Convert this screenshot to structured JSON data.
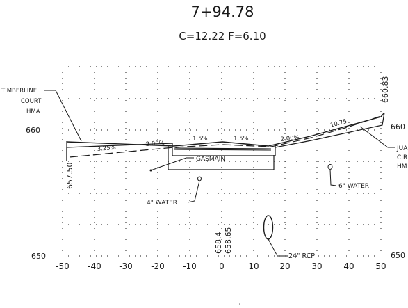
{
  "header": {
    "station": "7+94.78",
    "cut_fill": "C=12.22   F=6.10"
  },
  "axes": {
    "x_ticks": [
      "-50",
      "-40",
      "-30",
      "-20",
      "-10",
      "0",
      "10",
      "20",
      "30",
      "40",
      "50"
    ],
    "y_ticks_left": [
      "660",
      "650"
    ],
    "y_ticks_right": [
      "660",
      "650"
    ]
  },
  "labels": {
    "timberline": [
      "TIMBERLINE",
      "COURT",
      "HMA"
    ],
    "juan": [
      "JUA",
      "CIR",
      "HM"
    ],
    "elev_left": "657.50",
    "elev_right": "660.83",
    "elev_center_1": "658.4",
    "elev_center_2": "658.65",
    "gasmain": "GASMAIN",
    "water_4": "4\" WATER",
    "water_6": "6\" WATER",
    "rcp_24": "24\" RCP"
  },
  "slopes": {
    "s1": "3.25%",
    "s2": "2.00%",
    "s3": "1.5%",
    "s4": "1.5%",
    "s5": "2.00%",
    "s6": "10.75"
  }
}
